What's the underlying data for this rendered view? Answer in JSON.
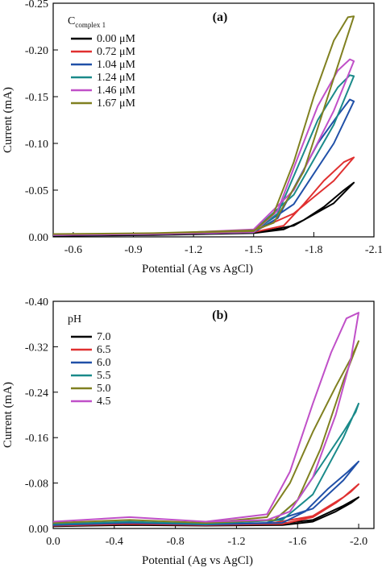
{
  "chart_data": [
    {
      "type": "line",
      "panel_label": "(a)",
      "xlabel": "Potential (Ag vs AgCl)",
      "ylabel": "Current (mA)",
      "xlim": [
        -0.5,
        -2.1
      ],
      "ylim": [
        0.0,
        -0.25
      ],
      "x_ticks": [
        -0.6,
        -0.9,
        -1.2,
        -1.5,
        -1.8,
        -2.1
      ],
      "x_tick_labels": [
        "-0.6",
        "-0.9",
        "-1.2",
        "-1.5",
        "-1.8",
        "-2.1"
      ],
      "y_ticks": [
        0.0,
        -0.05,
        -0.1,
        -0.15,
        -0.2,
        -0.25
      ],
      "y_tick_labels": [
        "0.00",
        "-0.05",
        "-0.10",
        "-0.15",
        "-0.20",
        "-0.25"
      ],
      "legend_title": "C",
      "legend_title_sub": "complex 1",
      "legend_position": "top-left",
      "curve_shape": "closed cyclic voltammogram loops",
      "series": [
        {
          "name": "0.00 μM",
          "color": "#000000",
          "x": [
            -0.5,
            -1.0,
            -1.5,
            -1.65,
            -1.75,
            -1.85,
            -1.95,
            -2.0,
            -1.9,
            -1.7,
            -1.5,
            -1.0,
            -0.5
          ],
          "y": [
            -0.001,
            -0.002,
            -0.004,
            -0.008,
            -0.018,
            -0.032,
            -0.05,
            -0.058,
            -0.036,
            -0.012,
            -0.004,
            -0.002,
            -0.001
          ]
        },
        {
          "name": "0.72 μM",
          "color": "#e03030",
          "x": [
            -0.5,
            -1.0,
            -1.5,
            -1.65,
            -1.75,
            -1.85,
            -1.95,
            -2.0,
            -1.9,
            -1.7,
            -1.5,
            -1.0,
            -0.5
          ],
          "y": [
            -0.002,
            -0.003,
            -0.005,
            -0.012,
            -0.035,
            -0.06,
            -0.08,
            -0.085,
            -0.06,
            -0.025,
            -0.006,
            -0.003,
            -0.002
          ]
        },
        {
          "name": "1.04 μM",
          "color": "#2050a8",
          "x": [
            -0.5,
            -1.0,
            -1.5,
            -1.62,
            -1.72,
            -1.82,
            -1.92,
            -1.98,
            -2.0,
            -1.9,
            -1.7,
            -1.5,
            -1.0,
            -0.5
          ],
          "y": [
            -0.002,
            -0.003,
            -0.005,
            -0.02,
            -0.06,
            -0.1,
            -0.13,
            -0.147,
            -0.145,
            -0.1,
            -0.035,
            -0.006,
            -0.003,
            -0.002
          ]
        },
        {
          "name": "1.24 μM",
          "color": "#1a8a8a",
          "x": [
            -0.5,
            -1.0,
            -1.5,
            -1.62,
            -1.72,
            -1.82,
            -1.92,
            -1.98,
            -2.0,
            -1.9,
            -1.7,
            -1.5,
            -1.0,
            -0.5
          ],
          "y": [
            -0.002,
            -0.003,
            -0.005,
            -0.025,
            -0.075,
            -0.125,
            -0.16,
            -0.173,
            -0.172,
            -0.12,
            -0.045,
            -0.007,
            -0.003,
            -0.002
          ]
        },
        {
          "name": "1.46 μM",
          "color": "#c050c8",
          "x": [
            -0.5,
            -1.0,
            -1.5,
            -1.62,
            -1.72,
            -1.82,
            -1.92,
            -1.98,
            -2.0,
            -1.9,
            -1.7,
            -1.5,
            -1.0,
            -0.5
          ],
          "y": [
            -0.002,
            -0.003,
            -0.005,
            -0.028,
            -0.085,
            -0.14,
            -0.178,
            -0.19,
            -0.188,
            -0.135,
            -0.05,
            -0.008,
            -0.003,
            -0.002
          ]
        },
        {
          "name": "1.67 μM",
          "color": "#808020",
          "x": [
            -0.5,
            -1.0,
            -1.5,
            -1.6,
            -1.7,
            -1.8,
            -1.9,
            -1.97,
            -2.0,
            -1.9,
            -1.75,
            -1.6,
            -1.5,
            -1.0,
            -0.5
          ],
          "y": [
            -0.003,
            -0.004,
            -0.006,
            -0.025,
            -0.08,
            -0.15,
            -0.21,
            -0.235,
            -0.236,
            -0.17,
            -0.07,
            -0.015,
            -0.007,
            -0.004,
            -0.003
          ]
        }
      ]
    },
    {
      "type": "line",
      "panel_label": "(b)",
      "xlabel": "Potential (Ag vs AgCl)",
      "ylabel": "Current (mA)",
      "xlim": [
        0.0,
        -2.1
      ],
      "ylim": [
        0.0,
        -0.4
      ],
      "x_ticks": [
        0.0,
        -0.4,
        -0.8,
        -1.2,
        -1.6,
        -2.0
      ],
      "x_tick_labels": [
        "0.0",
        "-0.4",
        "-0.8",
        "-1.2",
        "-1.6",
        "-2.0"
      ],
      "y_ticks": [
        0.0,
        -0.08,
        -0.16,
        -0.24,
        -0.32,
        -0.4
      ],
      "y_tick_labels": [
        "0.00",
        "-0.08",
        "-0.16",
        "-0.24",
        "-0.32",
        "-0.40"
      ],
      "legend_title": "pH",
      "legend_position": "top-left",
      "curve_shape": "closed cyclic voltammogram loops",
      "series": [
        {
          "name": "7.0",
          "color": "#000000",
          "x": [
            0.0,
            -0.5,
            -1.0,
            -1.5,
            -1.7,
            -1.85,
            -1.95,
            -2.0,
            -1.9,
            -1.7,
            -1.4,
            -1.0,
            -0.5,
            0.0
          ],
          "y": [
            -0.004,
            -0.006,
            -0.005,
            -0.006,
            -0.012,
            -0.03,
            -0.045,
            -0.055,
            -0.04,
            -0.015,
            -0.006,
            -0.005,
            -0.006,
            -0.004
          ]
        },
        {
          "name": "6.5",
          "color": "#e03030",
          "x": [
            0.0,
            -0.5,
            -1.0,
            -1.5,
            -1.7,
            -1.85,
            -1.95,
            -2.0,
            -1.9,
            -1.7,
            -1.4,
            -1.0,
            -0.5,
            0.0
          ],
          "y": [
            -0.005,
            -0.008,
            -0.006,
            -0.008,
            -0.02,
            -0.045,
            -0.065,
            -0.078,
            -0.055,
            -0.022,
            -0.008,
            -0.006,
            -0.008,
            -0.005
          ]
        },
        {
          "name": "6.0",
          "color": "#2050a8",
          "x": [
            0.0,
            -0.5,
            -1.0,
            -1.5,
            -1.65,
            -1.8,
            -1.93,
            -2.0,
            -1.9,
            -1.7,
            -1.4,
            -1.0,
            -0.5,
            0.0
          ],
          "y": [
            -0.006,
            -0.01,
            -0.007,
            -0.01,
            -0.03,
            -0.07,
            -0.1,
            -0.118,
            -0.085,
            -0.035,
            -0.01,
            -0.007,
            -0.01,
            -0.006
          ]
        },
        {
          "name": "5.5",
          "color": "#1a8a8a",
          "x": [
            0.0,
            -0.5,
            -1.0,
            -1.45,
            -1.6,
            -1.75,
            -1.9,
            -1.98,
            -2.0,
            -1.9,
            -1.7,
            -1.5,
            -1.0,
            -0.5,
            0.0
          ],
          "y": [
            -0.008,
            -0.012,
            -0.008,
            -0.015,
            -0.05,
            -0.11,
            -0.17,
            -0.205,
            -0.22,
            -0.16,
            -0.06,
            -0.015,
            -0.008,
            -0.012,
            -0.008
          ]
        },
        {
          "name": "5.0",
          "color": "#808020",
          "x": [
            0.0,
            -0.5,
            -1.0,
            -1.4,
            -1.55,
            -1.7,
            -1.85,
            -1.95,
            -2.0,
            -1.9,
            -1.75,
            -1.6,
            -1.45,
            -1.0,
            -0.5,
            0.0
          ],
          "y": [
            -0.01,
            -0.015,
            -0.01,
            -0.02,
            -0.08,
            -0.17,
            -0.25,
            -0.3,
            -0.33,
            -0.26,
            -0.14,
            -0.05,
            -0.015,
            -0.01,
            -0.015,
            -0.01
          ]
        },
        {
          "name": "4.5",
          "color": "#c050c8",
          "x": [
            0.0,
            -0.5,
            -1.0,
            -1.4,
            -1.55,
            -1.7,
            -1.82,
            -1.92,
            -2.0,
            -1.95,
            -1.85,
            -1.7,
            -1.55,
            -1.4,
            -1.0,
            -0.5,
            0.0
          ],
          "y": [
            -0.012,
            -0.02,
            -0.012,
            -0.025,
            -0.1,
            -0.22,
            -0.31,
            -0.37,
            -0.38,
            -0.3,
            -0.2,
            -0.09,
            -0.03,
            -0.015,
            -0.012,
            -0.02,
            -0.012
          ]
        }
      ]
    }
  ]
}
